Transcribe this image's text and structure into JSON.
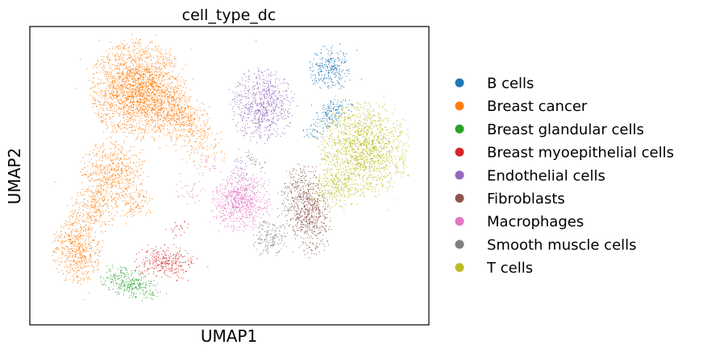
{
  "chart_data": {
    "type": "scatter",
    "title": "cell_type_dc",
    "xlabel": "UMAP1",
    "ylabel": "UMAP2",
    "xticks": [],
    "yticks": [],
    "grid": false,
    "legend_position": "right",
    "point_size": "very small",
    "series": [
      {
        "name": "B cells",
        "color": "#1f77b4",
        "x": 7.2,
        "y": 8.5
      },
      {
        "name": "Breast cancer",
        "color": "#ff7f0e",
        "x": 2.6,
        "y": 7.4
      },
      {
        "name": "Breast glandular cells",
        "color": "#2ca02c",
        "x": 2.8,
        "y": 1.3
      },
      {
        "name": "Breast myoepithelial cells",
        "color": "#d62728",
        "x": 3.9,
        "y": 2.0
      },
      {
        "name": "Endothelial cells",
        "color": "#9467bd",
        "x": 5.8,
        "y": 7.4
      },
      {
        "name": "Fibroblasts",
        "color": "#8c564b",
        "x": 6.8,
        "y": 3.7
      },
      {
        "name": "Macrophages",
        "color": "#e377c2",
        "x": 5.4,
        "y": 4.0
      },
      {
        "name": "Smooth muscle cells",
        "color": "#7f7f7f",
        "x": 6.1,
        "y": 2.7
      },
      {
        "name": "T cells",
        "color": "#bcbd22",
        "x": 8.7,
        "y": 5.9
      }
    ]
  }
}
